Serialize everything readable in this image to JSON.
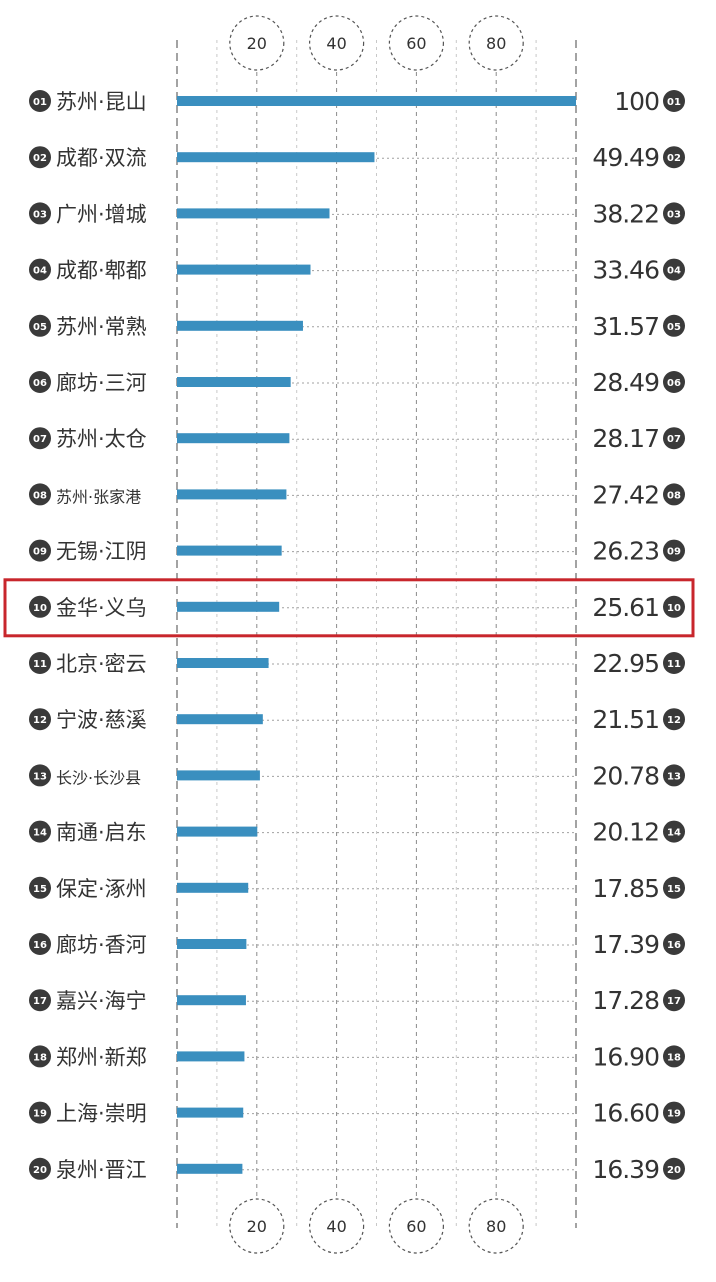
{
  "colors": {
    "bar": "#3a8fbf",
    "highlight": "#c8262c",
    "text": "#333333",
    "badge": "#3a3a3a",
    "grid": "#999999"
  },
  "chart_data": {
    "type": "bar",
    "orientation": "horizontal",
    "xlim": [
      0,
      100
    ],
    "axis_ticks": [
      20,
      40,
      60,
      80
    ],
    "grid": true,
    "highlighted_rank": "10",
    "categories": [
      {
        "rank": "01",
        "name": "苏州·昆山",
        "value": 100,
        "value_label": "100"
      },
      {
        "rank": "02",
        "name": "成都·双流",
        "value": 49.49,
        "value_label": "49.49"
      },
      {
        "rank": "03",
        "name": "广州·增城",
        "value": 38.22,
        "value_label": "38.22"
      },
      {
        "rank": "04",
        "name": "成都·郫都",
        "value": 33.46,
        "value_label": "33.46"
      },
      {
        "rank": "05",
        "name": "苏州·常熟",
        "value": 31.57,
        "value_label": "31.57"
      },
      {
        "rank": "06",
        "name": "廊坊·三河",
        "value": 28.49,
        "value_label": "28.49"
      },
      {
        "rank": "07",
        "name": "苏州·太仓",
        "value": 28.17,
        "value_label": "28.17"
      },
      {
        "rank": "08",
        "name": "苏州·张家港",
        "value": 27.42,
        "value_label": "27.42"
      },
      {
        "rank": "09",
        "name": "无锡·江阴",
        "value": 26.23,
        "value_label": "26.23"
      },
      {
        "rank": "10",
        "name": "金华·义乌",
        "value": 25.61,
        "value_label": "25.61"
      },
      {
        "rank": "11",
        "name": "北京·密云",
        "value": 22.95,
        "value_label": "22.95"
      },
      {
        "rank": "12",
        "name": "宁波·慈溪",
        "value": 21.51,
        "value_label": "21.51"
      },
      {
        "rank": "13",
        "name": "长沙·长沙县",
        "value": 20.78,
        "value_label": "20.78"
      },
      {
        "rank": "14",
        "name": "南通·启东",
        "value": 20.12,
        "value_label": "20.12"
      },
      {
        "rank": "15",
        "name": "保定·涿州",
        "value": 17.85,
        "value_label": "17.85"
      },
      {
        "rank": "16",
        "name": "廊坊·香河",
        "value": 17.39,
        "value_label": "17.39"
      },
      {
        "rank": "17",
        "name": "嘉兴·海宁",
        "value": 17.28,
        "value_label": "17.28"
      },
      {
        "rank": "18",
        "name": "郑州·新郑",
        "value": 16.9,
        "value_label": "16.90"
      },
      {
        "rank": "19",
        "name": "上海·崇明",
        "value": 16.6,
        "value_label": "16.60"
      },
      {
        "rank": "20",
        "name": "泉州·晋江",
        "value": 16.39,
        "value_label": "16.39"
      }
    ]
  }
}
